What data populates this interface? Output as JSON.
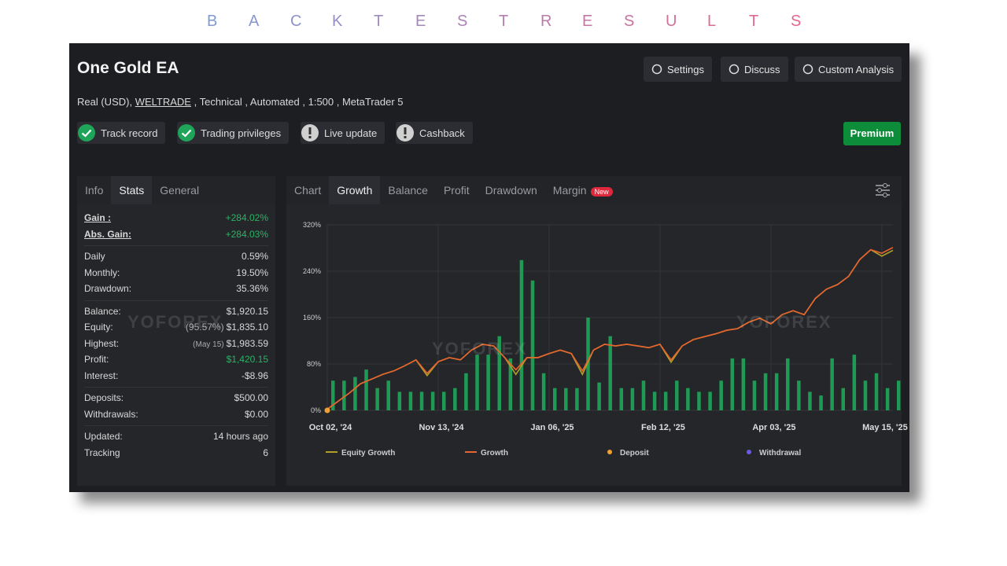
{
  "banner": {
    "letters": [
      "B",
      "A",
      "C",
      "K",
      "T",
      "E",
      "S",
      "T",
      "R",
      "E",
      "S",
      "U",
      "L",
      "T",
      "S"
    ],
    "colors": [
      "#7f9ad4",
      "#e8648c"
    ]
  },
  "header": {
    "title": "One Gold EA",
    "account": "Real (USD),",
    "broker": "WELTRADE",
    "details": ", Technical , Automated , 1:500 , MetaTrader 5",
    "buttons": [
      "Settings",
      "Discuss",
      "Custom Analysis"
    ],
    "premium": "Premium"
  },
  "badges": [
    {
      "label": "Track record",
      "verified": true
    },
    {
      "label": "Trading privileges",
      "verified": true
    },
    {
      "label": "Live update",
      "verified": false
    },
    {
      "label": "Cashback",
      "verified": false
    }
  ],
  "watermark": "YOFOREX",
  "stats": {
    "tabs": [
      "Info",
      "Stats",
      "General"
    ],
    "active_tab": 1,
    "groups": [
      [
        {
          "label": "Gain :",
          "value": "+284.02%",
          "positive": true
        },
        {
          "label": "Abs. Gain:",
          "value": "+284.03%",
          "positive": true
        }
      ],
      [
        {
          "label": "Daily",
          "value": "0.59%"
        },
        {
          "label": "Monthly:",
          "value": "19.50%"
        },
        {
          "label": "Drawdown:",
          "value": "35.36%"
        }
      ],
      [
        {
          "label": "Balance:",
          "value": "$1,920.15"
        },
        {
          "label": "Equity:",
          "note": "(95.57%)",
          "value": "$1,835.10"
        },
        {
          "label": "Highest:",
          "note": "(May 15)",
          "value": "$1,983.59"
        },
        {
          "label": "Profit:",
          "value": "$1,420.15",
          "positive": true
        },
        {
          "label": "Interest:",
          "value": "-$8.96"
        }
      ],
      [
        {
          "label": "Deposits:",
          "value": "$500.00"
        },
        {
          "label": "Withdrawals:",
          "value": "$0.00"
        }
      ],
      [
        {
          "label": "Updated:",
          "value": "14 hours ago"
        },
        {
          "label": "Tracking",
          "value": "6"
        }
      ]
    ]
  },
  "chart_tabs": {
    "tabs": [
      "Chart",
      "Growth",
      "Balance",
      "Profit",
      "Drawdown",
      "Margin"
    ],
    "active_tab": 1,
    "badge": "New"
  },
  "chart_data": {
    "type": "line",
    "categories": [
      "Oct 02, '24",
      null,
      null,
      null,
      null,
      null,
      null,
      null,
      null,
      null,
      "Nov 13, '24",
      null,
      null,
      null,
      null,
      null,
      null,
      null,
      null,
      null,
      "Jan 06, '25",
      null,
      null,
      null,
      null,
      null,
      null,
      null,
      null,
      null,
      "Feb 12, '25",
      null,
      null,
      null,
      null,
      null,
      null,
      null,
      null,
      null,
      "Apr 03, '25",
      null,
      null,
      null,
      null,
      null,
      null,
      null,
      null,
      null,
      "May 15, '25",
      null
    ],
    "ylim": [
      0,
      320
    ],
    "yticks": [
      {
        "value": 0,
        "label": "0%"
      },
      {
        "value": 80,
        "label": "80%"
      },
      {
        "value": 160,
        "label": "160%"
      },
      {
        "value": 240,
        "label": "240%"
      },
      {
        "value": 320,
        "label": "320%"
      }
    ],
    "y2lim": [
      0,
      100
    ],
    "grid": true,
    "series": [
      {
        "name": "Equity Growth",
        "color": "#b0a02a",
        "kind": "line",
        "values": [
          2,
          16,
          30,
          46,
          54,
          62,
          68,
          77,
          87,
          60,
          84,
          91,
          87,
          104,
          114,
          111,
          91,
          62,
          91,
          91,
          98,
          104,
          98,
          62,
          104,
          114,
          111,
          114,
          111,
          108,
          114,
          83,
          111,
          122,
          127,
          132,
          138,
          141,
          152,
          159,
          149,
          165,
          172,
          165,
          193,
          209,
          217,
          231,
          260,
          277,
          266,
          276
        ]
      },
      {
        "name": "Growth",
        "color": "#e8642e",
        "kind": "line",
        "values": [
          2,
          16,
          30,
          46,
          54,
          62,
          68,
          77,
          87,
          64,
          84,
          91,
          87,
          104,
          114,
          111,
          91,
          70,
          91,
          91,
          98,
          104,
          98,
          68,
          104,
          114,
          111,
          114,
          111,
          108,
          114,
          87,
          111,
          122,
          127,
          132,
          138,
          141,
          152,
          159,
          149,
          165,
          172,
          165,
          193,
          209,
          217,
          231,
          260,
          277,
          271,
          281
        ]
      },
      {
        "name": "Deposit",
        "color": "#f0a030",
        "kind": "point",
        "values": [
          0,
          null,
          null,
          null,
          null,
          null,
          null,
          null,
          null,
          null,
          null,
          null,
          null,
          null,
          null,
          null,
          null,
          null,
          null,
          null,
          null,
          null,
          null,
          null,
          null,
          null,
          null,
          null,
          null,
          null,
          null,
          null,
          null,
          null,
          null,
          null,
          null,
          null,
          null,
          null,
          null,
          null,
          null,
          null,
          null,
          null,
          null,
          null,
          null,
          null,
          null,
          null
        ]
      },
      {
        "name": "Withdrawal",
        "color": "#6a5ae0",
        "kind": "point",
        "values": [
          null,
          null,
          null,
          null,
          null,
          null,
          null,
          null,
          null,
          null,
          null,
          null,
          null,
          null,
          null,
          null,
          null,
          null,
          null,
          null,
          null,
          null,
          null,
          null,
          null,
          null,
          null,
          null,
          null,
          null,
          null,
          null,
          null,
          null,
          null,
          null,
          null,
          null,
          null,
          null,
          null,
          null,
          null,
          null,
          null,
          null,
          null,
          null,
          null,
          null,
          null,
          null
        ]
      },
      {
        "name": null,
        "color": "#1f9a55",
        "kind": "bar",
        "axis": "y2",
        "values": [
          16,
          16,
          18,
          22,
          12,
          16,
          10,
          10,
          10,
          10,
          10,
          12,
          20,
          30,
          30,
          40,
          28,
          81,
          70,
          20,
          12,
          12,
          12,
          50,
          15,
          40,
          12,
          12,
          16,
          10,
          10,
          16,
          12,
          10,
          10,
          16,
          28,
          28,
          16,
          20,
          20,
          28,
          16,
          10,
          8,
          28,
          12,
          30,
          16,
          20,
          12,
          16
        ]
      }
    ]
  }
}
